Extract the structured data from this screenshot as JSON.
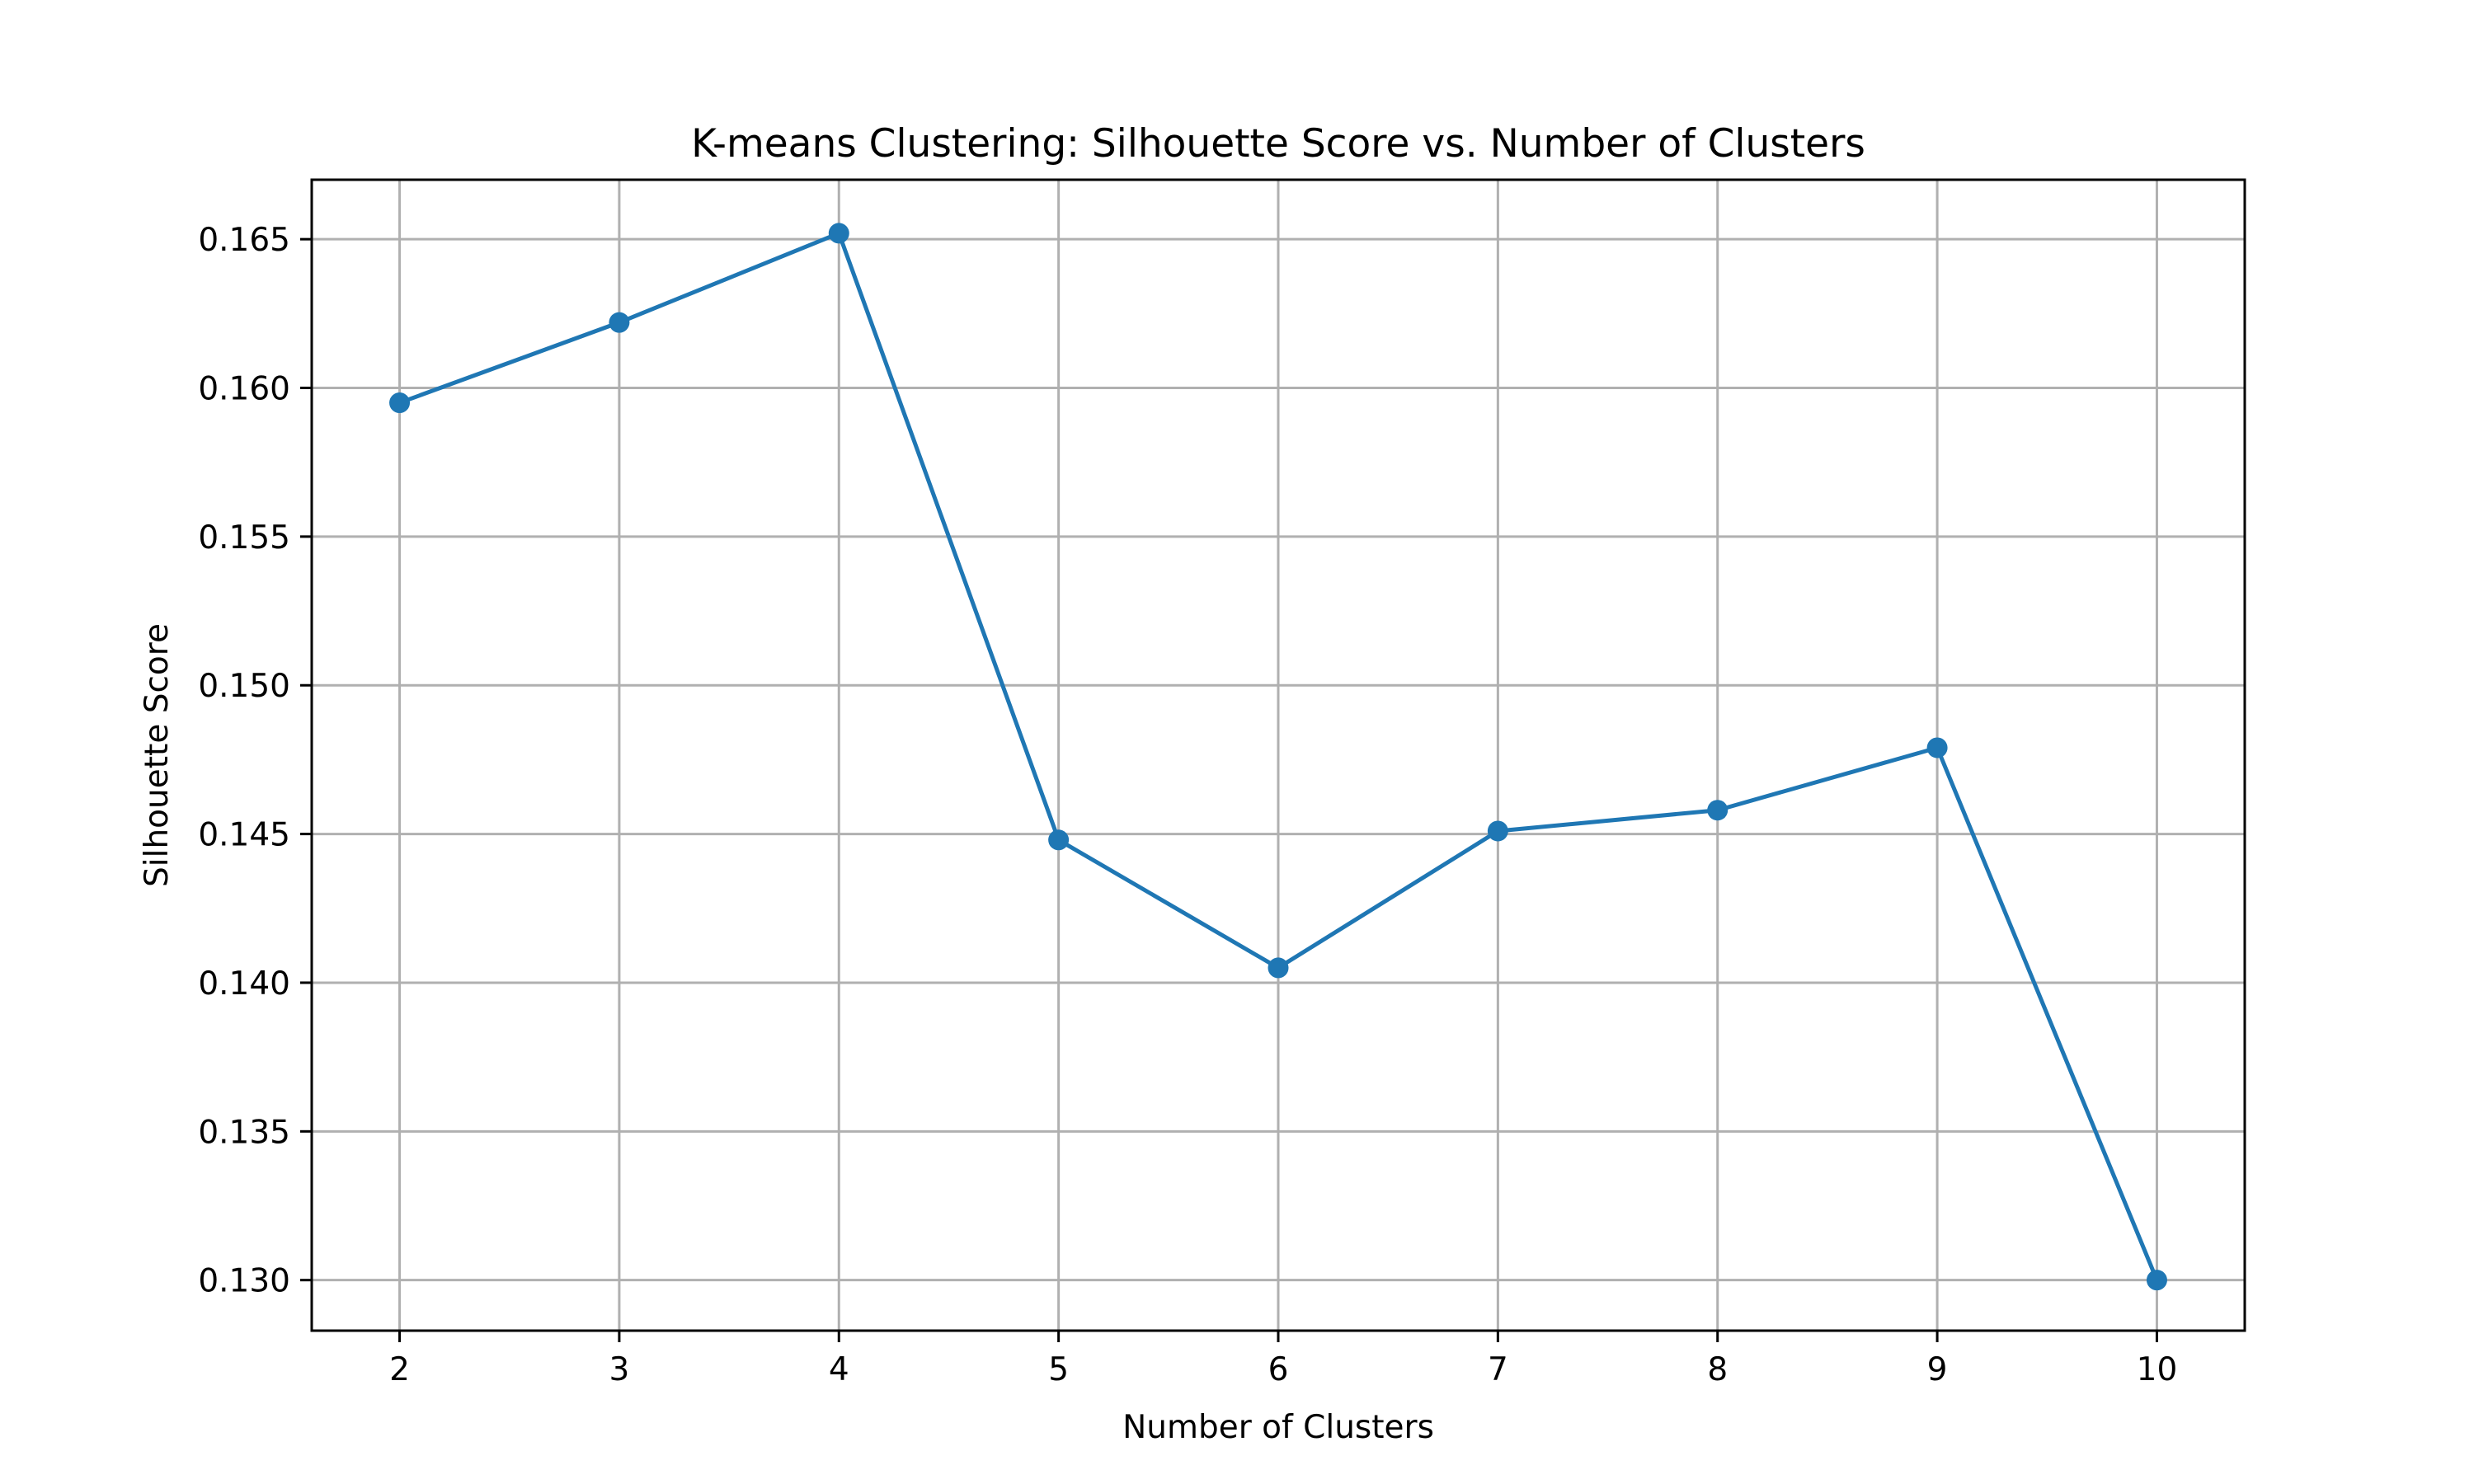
{
  "chart_data": {
    "type": "line",
    "title": "K-means Clustering: Silhouette Score vs. Number of Clusters",
    "xlabel": "Number of Clusters",
    "ylabel": "Silhouette Score",
    "x": [
      2,
      3,
      4,
      5,
      6,
      7,
      8,
      9,
      10
    ],
    "series": [
      {
        "values": [
          0.1595,
          0.1622,
          0.1652,
          0.1448,
          0.1405,
          0.1451,
          0.1458,
          0.1479,
          0.13
        ],
        "color": "#1f77b4",
        "marker": "circle"
      }
    ],
    "xticks": [
      2,
      3,
      4,
      5,
      6,
      7,
      8,
      9,
      10
    ],
    "xtick_labels": [
      "2",
      "3",
      "4",
      "5",
      "6",
      "7",
      "8",
      "9",
      "10"
    ],
    "yticks": [
      0.13,
      0.135,
      0.14,
      0.145,
      0.15,
      0.155,
      0.16,
      0.165
    ],
    "ytick_labels": [
      "0.130",
      "0.135",
      "0.140",
      "0.145",
      "0.150",
      "0.155",
      "0.160",
      "0.165"
    ],
    "xlim": [
      1.6,
      10.4
    ],
    "ylim": [
      0.1283,
      0.167
    ],
    "grid": true,
    "legend": "none"
  }
}
